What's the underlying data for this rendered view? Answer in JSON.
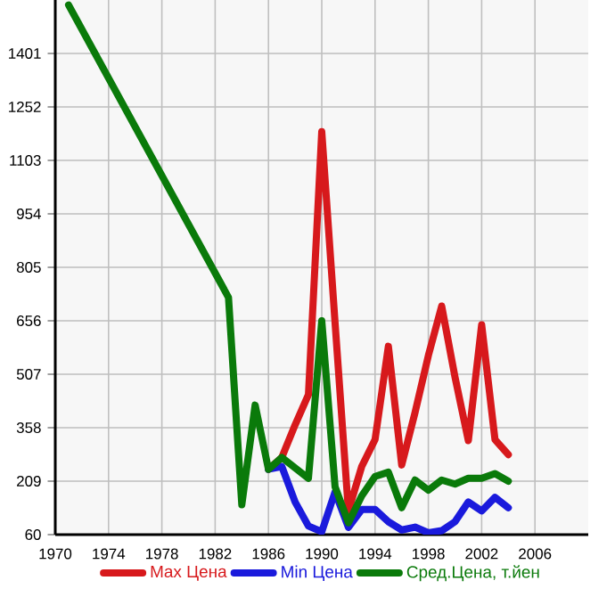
{
  "chart_data": {
    "type": "line",
    "xlim": [
      1970,
      2010
    ],
    "xticks": [
      1970,
      1974,
      1978,
      1982,
      1986,
      1990,
      1994,
      1998,
      2002,
      2006
    ],
    "ylim": [
      60,
      1550
    ],
    "yticks": [
      60,
      209,
      358,
      507,
      656,
      805,
      954,
      1103,
      1252,
      1401
    ],
    "grid": true,
    "legend": "bottom",
    "marker": "none",
    "line_style": "solid",
    "series": [
      {
        "name": "Max Цена",
        "color": "#d7191c",
        "x": [
          1986,
          1987,
          1988,
          1989,
          1990,
          1991,
          1992,
          1993,
          1994,
          1995,
          1996,
          1997,
          1998,
          1999,
          2000,
          2001,
          2002,
          2003,
          2004
        ],
        "values": [
          242,
          275,
          366,
          450,
          1183,
          650,
          126,
          250,
          325,
          585,
          254,
          400,
          559,
          697,
          499,
          322,
          645,
          325,
          283
        ]
      },
      {
        "name": "Min Цена",
        "color": "#1a1adc",
        "x": [
          1986,
          1987,
          1988,
          1989,
          1990,
          1991,
          1992,
          1993,
          1994,
          1995,
          1996,
          1997,
          1998,
          1999,
          2000,
          2001,
          2002,
          2003,
          2004
        ],
        "values": [
          242,
          250,
          151,
          84,
          68,
          179,
          80,
          130,
          130,
          96,
          73,
          81,
          65,
          71,
          96,
          151,
          126,
          164,
          135
        ]
      },
      {
        "name": "Сред.Цена, т.йен",
        "color": "#0a7a0a",
        "x": [
          1971,
          1983,
          1984,
          1985,
          1986,
          1987,
          1988,
          1989,
          1990,
          1991,
          1992,
          1993,
          1994,
          1995,
          1996,
          1997,
          1998,
          1999,
          2000,
          2001,
          2002,
          2003,
          2004
        ],
        "values": [
          1536,
          721,
          143,
          421,
          242,
          275,
          246,
          217,
          656,
          193,
          93,
          168,
          222,
          234,
          135,
          212,
          184,
          212,
          201,
          217,
          217,
          230,
          209
        ]
      }
    ]
  }
}
